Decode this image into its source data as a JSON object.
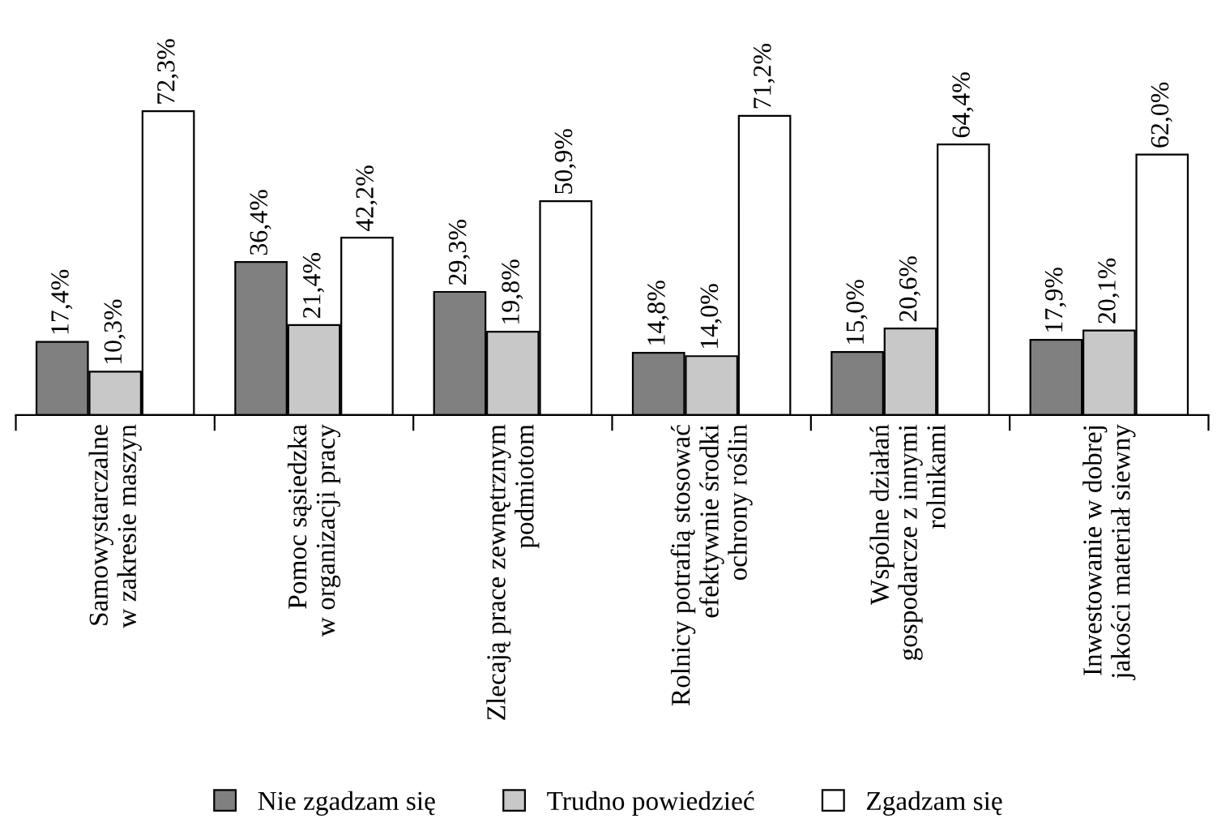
{
  "chart_data": {
    "type": "bar",
    "categories": [
      "Samowystarczalne\nw zakresie maszyn",
      "Pomoc sąsiedzka\nw organizacji pracy",
      "Zlecają prace zewnętrznym\npodmiotom",
      "Rolnicy potrafią stosować\nefektywnie środki\nochrony roślin",
      "Wspólne działań\ngospodarcze z innymi\nrolnikami",
      "Inwestowanie w dobrej\njakości materiał siewny"
    ],
    "series": [
      {
        "name": "Nie zgadzam się",
        "color": "#808080",
        "values": [
          17.4,
          36.4,
          29.3,
          14.8,
          15.0,
          17.9
        ],
        "value_labels": [
          "17,4%",
          "36,4%",
          "29,3%",
          "14,8%",
          "15,0%",
          "17,9%"
        ]
      },
      {
        "name": "Trudno powiedzieć",
        "color": "#c8c8c8",
        "values": [
          10.3,
          21.4,
          19.8,
          14.0,
          20.6,
          20.1
        ],
        "value_labels": [
          "10,3%",
          "21,4%",
          "19,8%",
          "14,0%",
          "20,6%",
          "20,1%"
        ]
      },
      {
        "name": "Zgadzam się",
        "color": "#ffffff",
        "values": [
          72.3,
          42.2,
          50.9,
          71.2,
          64.4,
          62.0
        ],
        "value_labels": [
          "72,3%",
          "42,2%",
          "50,9%",
          "71,2%",
          "64,4%",
          "62,0%"
        ]
      }
    ],
    "legend": "bottom",
    "grid": false
  }
}
